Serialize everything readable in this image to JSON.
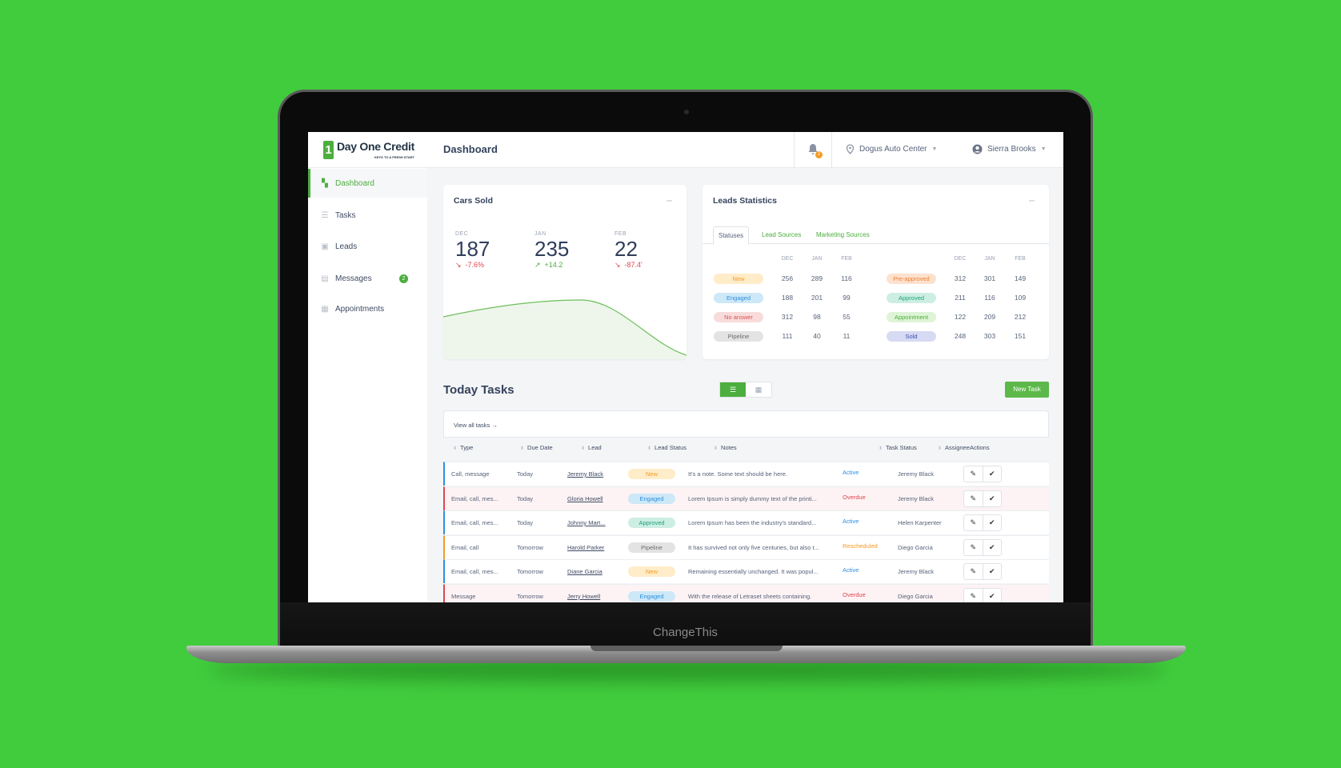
{
  "colors": {
    "background": "#41cc3d",
    "brand": "#4cae3e",
    "active": "#2d8fe0",
    "overdue": "#e0454f",
    "rescheduled": "#f59a23"
  },
  "device": {
    "brand_label": "ChangeThis"
  },
  "header": {
    "logo_mark": "1",
    "logo_text": "Day One Credit",
    "logo_tagline": "KEYS TO A FRESH START",
    "title": "Dashboard",
    "notifications_count": "2",
    "location": "Dogus Auto Center",
    "user": "Sierra Brooks"
  },
  "sidebar": {
    "items": [
      {
        "label": "Dashboard",
        "icon": "dashboard-icon"
      },
      {
        "label": "Tasks",
        "icon": "list-icon"
      },
      {
        "label": "Leads",
        "icon": "contact-icon"
      },
      {
        "label": "Messages",
        "icon": "message-icon",
        "badge": "2"
      },
      {
        "label": "Appointments",
        "icon": "calendar-icon"
      }
    ]
  },
  "cars_sold": {
    "title": "Cars Sold",
    "stats": [
      {
        "month": "DEC",
        "value": "187",
        "delta": "-7.6%",
        "trend": "down"
      },
      {
        "month": "JAN",
        "value": "235",
        "delta": "+14.2",
        "trend": "up"
      },
      {
        "month": "FEB",
        "value": "22",
        "delta": "-87.4'",
        "trend": "down"
      }
    ]
  },
  "leads": {
    "title": "Leads Statistics",
    "tabs": [
      "Statuses",
      "Lead Sources",
      "Marketing Sources"
    ],
    "months": [
      "DEC",
      "JAN",
      "FEB"
    ],
    "left": [
      {
        "label": "New",
        "bg": "#ffecc8",
        "fg": "#f59a23",
        "values": [
          "256",
          "289",
          "116"
        ]
      },
      {
        "label": "Engaged",
        "bg": "#cde8f7",
        "fg": "#2d8fe0",
        "values": [
          "188",
          "201",
          "99"
        ]
      },
      {
        "label": "No answer",
        "bg": "#f8dcdc",
        "fg": "#d9534f",
        "values": [
          "312",
          "98",
          "55"
        ]
      },
      {
        "label": "Pipeline",
        "bg": "#e3e3e3",
        "fg": "#6b6b6b",
        "values": [
          "111",
          "40",
          "11"
        ]
      }
    ],
    "right": [
      {
        "label": "Pre-approved",
        "bg": "#fde1cf",
        "fg": "#f07d2c",
        "values": [
          "312",
          "301",
          "149"
        ]
      },
      {
        "label": "Approved",
        "bg": "#cdeee3",
        "fg": "#1aa37a",
        "values": [
          "211",
          "116",
          "109"
        ]
      },
      {
        "label": "Appointment",
        "bg": "#def4d6",
        "fg": "#4cae3e",
        "values": [
          "122",
          "209",
          "212"
        ]
      },
      {
        "label": "Sold",
        "bg": "#d6daf3",
        "fg": "#3f4fb3",
        "values": [
          "248",
          "303",
          "151"
        ]
      }
    ]
  },
  "tasks": {
    "title": "Today Tasks",
    "new_task": "New Task",
    "view_all": "View all tasks →",
    "columns": [
      "Type",
      "Due Date",
      "Lead",
      "Lead Status",
      "Notes",
      "Task Status",
      "Assignee",
      "Actions"
    ],
    "rows": [
      {
        "type": "Call, message",
        "due": "Today",
        "lead": "Jeremy Black",
        "lead_status": "New",
        "notes": "It's a note. Some text should be here.",
        "task_status": "Active",
        "assignee": "Jeremy Black"
      },
      {
        "type": "Email, call, mes...",
        "due": "Today",
        "lead": "Gloria Howell",
        "lead_status": "Engaged",
        "notes": "Lorem Ipsum is simply dummy text of the printi...",
        "task_status": "Overdue",
        "assignee": "Jeremy Black"
      },
      {
        "type": "Email, call, mes...",
        "due": "Today",
        "lead": "Johnny Mart...",
        "lead_status": "Approved",
        "notes": "Lorem Ipsum has been the industry's standard...",
        "task_status": "Active",
        "assignee": "Helen Karpenter"
      },
      {
        "type": "Email, call",
        "due": "Tomorrow",
        "lead": "Harold Parker",
        "lead_status": "Pipeline",
        "notes": "It has survived not only five centuries, but also t...",
        "task_status": "Rescheduled",
        "assignee": "Diego Garcia"
      },
      {
        "type": "Email, call, mes...",
        "due": "Tomorrow",
        "lead": "Diane Garcia",
        "lead_status": "New",
        "notes": "Remaining essentially unchanged. It was  popul...",
        "task_status": "Active",
        "assignee": "Jeremy Black"
      },
      {
        "type": "Message",
        "due": "Tomorrow",
        "lead": "Jerry Howell",
        "lead_status": "Engaged",
        "notes": "With the release of Letraset sheets containing.",
        "task_status": "Overdue",
        "assignee": "Diego Garcia"
      }
    ]
  }
}
